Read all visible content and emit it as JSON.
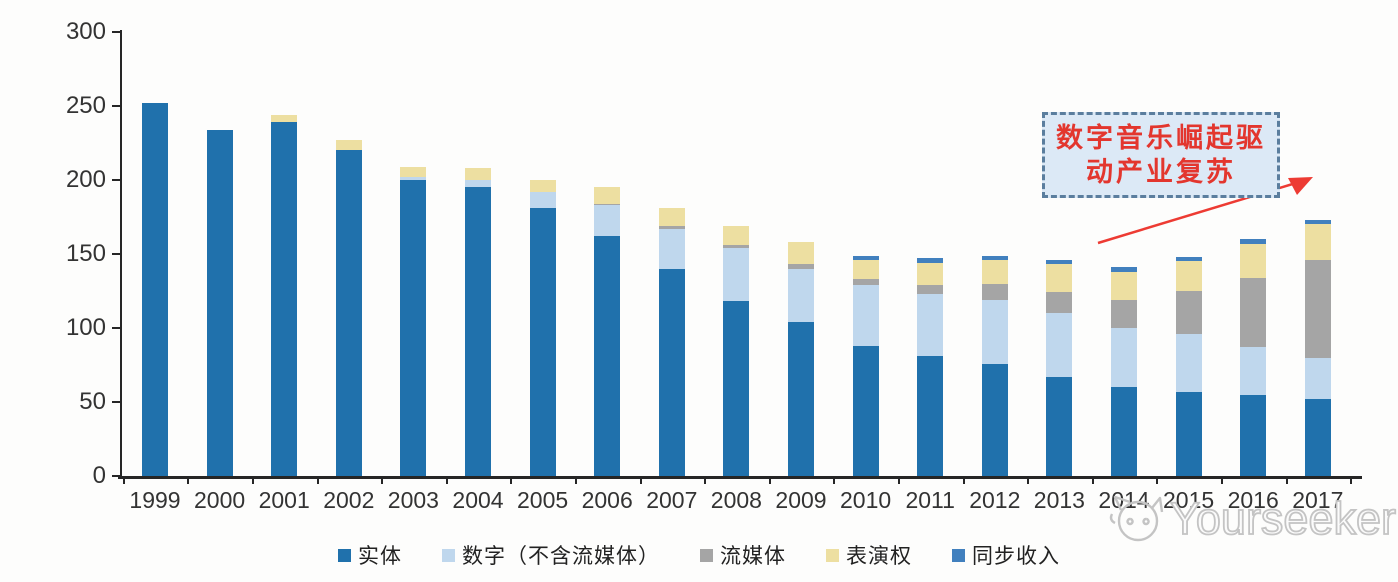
{
  "chart_data": {
    "type": "bar",
    "stacked": true,
    "title": "",
    "xlabel": "",
    "ylabel": "",
    "ylim": [
      0,
      300
    ],
    "y_ticks": [
      0,
      50,
      100,
      150,
      200,
      250,
      300
    ],
    "grid": false,
    "legend_position": "bottom",
    "categories": [
      "1999",
      "2000",
      "2001",
      "2002",
      "2003",
      "2004",
      "2005",
      "2006",
      "2007",
      "2008",
      "2009",
      "2010",
      "2011",
      "2012",
      "2013",
      "2014",
      "2015",
      "2016",
      "2017"
    ],
    "series": [
      {
        "name": "实体",
        "color": "#2071AC",
        "values": [
          252,
          234,
          239,
          220,
          200,
          195,
          181,
          162,
          140,
          118,
          104,
          88,
          81,
          76,
          67,
          60,
          57,
          55,
          52
        ]
      },
      {
        "name": "数字（不含流媒体）",
        "color": "#BFD7ED",
        "values": [
          0,
          0,
          0,
          0,
          2,
          5,
          11,
          21,
          27,
          36,
          36,
          41,
          42,
          43,
          43,
          40,
          39,
          32,
          28
        ]
      },
      {
        "name": "流媒体",
        "color": "#A5A5A5",
        "values": [
          0,
          0,
          0,
          0,
          0,
          0,
          0,
          1,
          2,
          2,
          3,
          4,
          6,
          11,
          14,
          19,
          29,
          47,
          66
        ]
      },
      {
        "name": "表演权",
        "color": "#EDDFA1",
        "values": [
          0,
          0,
          5,
          7,
          7,
          8,
          8,
          11,
          12,
          13,
          15,
          13,
          15,
          16,
          19,
          19,
          20,
          23,
          24
        ]
      },
      {
        "name": "同步收入",
        "color": "#4180BE",
        "values": [
          0,
          0,
          0,
          0,
          0,
          0,
          0,
          0,
          0,
          0,
          0,
          3,
          3,
          3,
          3,
          3,
          3,
          3,
          3
        ]
      }
    ]
  },
  "annotation": {
    "line1": "数字音乐崛起驱",
    "line2": "动产业复苏",
    "text_color": "#E3362E",
    "box_fill": "#DCE9F6",
    "box_border": "#5B7E9E",
    "arrow_color": "#ED3B33"
  },
  "watermark": {
    "text": "Yourseeker",
    "color": "#C4C4C4"
  }
}
